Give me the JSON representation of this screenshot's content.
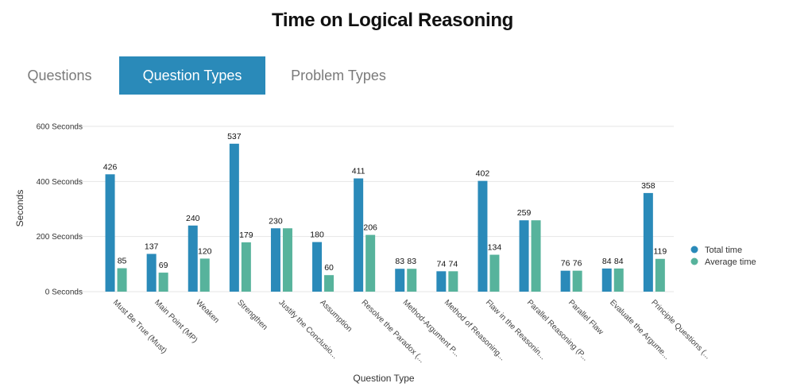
{
  "page": {
    "title": "Time on Logical Reasoning"
  },
  "tabs": [
    {
      "label": "Questions",
      "active": false
    },
    {
      "label": "Question Types",
      "active": true
    },
    {
      "label": "Problem Types",
      "active": false
    }
  ],
  "colors": {
    "accent": "#2a8ab9",
    "total": "#2a8ab9",
    "average": "#57b39c",
    "grid": "#e6e6e6"
  },
  "chart_data": {
    "type": "bar",
    "title": "Time on Logical Reasoning",
    "xlabel": "Question Type",
    "ylabel": "Seconds",
    "ylim": [
      0,
      600
    ],
    "yticks": [
      0,
      200,
      400,
      600
    ],
    "ytick_labels": [
      "0 Seconds",
      "200 Seconds",
      "400 Seconds",
      "600 Seconds"
    ],
    "grid": true,
    "legend_position": "right",
    "categories": [
      "Must Be True (Must)",
      "Main Point (MP)",
      "Weaken",
      "Strengthen",
      "Justify the Conclusio...",
      "Assumption",
      "Resolve the Paradox (...",
      "Method-Argument P...",
      "Method of Reasoning...",
      "Flaw in the Reasonin...",
      "Parallel Reasoning (P...",
      "Parallel Flaw",
      "Evaluate the Argume...",
      "Principle Questions (..."
    ],
    "series": [
      {
        "name": "Total time",
        "values": [
          426,
          137,
          240,
          537,
          230,
          180,
          411,
          83,
          74,
          402,
          259,
          76,
          84,
          358
        ]
      },
      {
        "name": "Average time",
        "values": [
          85,
          69,
          120,
          179,
          230,
          60,
          206,
          83,
          74,
          134,
          259,
          76,
          84,
          119
        ]
      }
    ],
    "data_labels": [
      [
        "426",
        "137",
        "240",
        "537",
        "230",
        "180",
        "411",
        "83",
        "74",
        "402",
        "259",
        "76",
        "84",
        "358"
      ],
      [
        "85",
        "69",
        "120",
        "179",
        "",
        "60",
        "206",
        "83",
        "74",
        "134",
        "",
        "76",
        "84",
        "119"
      ]
    ]
  }
}
